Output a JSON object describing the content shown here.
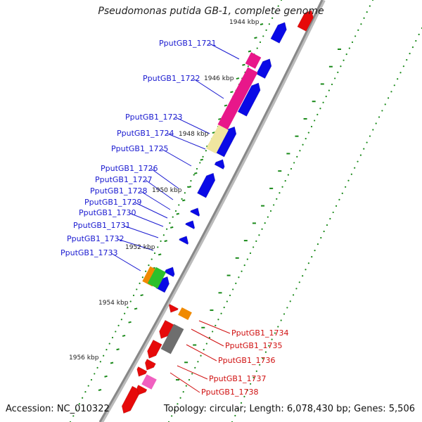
{
  "title": "Pseudomonas putida GB-1, complete genome",
  "footer": {
    "accession": "Accession: NC_010322",
    "topology": "Topology: circular; Length: 6,078,430 bp; Genes: 5,506"
  },
  "kbp_marks": [
    "1944 kbp",
    "1946 kbp",
    "1948 kbp",
    "1950 kbp",
    "1952 kbp",
    "1954 kbp",
    "1956 kbp"
  ],
  "genes_forward": [
    {
      "label": "PputGB1_1721"
    },
    {
      "label": "PputGB1_1722"
    },
    {
      "label": "PputGB1_1723"
    },
    {
      "label": "PputGB1_1724"
    },
    {
      "label": "PputGB1_1725"
    },
    {
      "label": "PputGB1_1726"
    },
    {
      "label": "PputGB1_1727"
    },
    {
      "label": "PputGB1_1728"
    },
    {
      "label": "PputGB1_1729"
    },
    {
      "label": "PputGB1_1730"
    },
    {
      "label": "PputGB1_1731"
    },
    {
      "label": "PputGB1_1732"
    },
    {
      "label": "PputGB1_1733"
    }
  ],
  "genes_reverse": [
    {
      "label": "PputGB1_1734"
    },
    {
      "label": "PputGB1_1735"
    },
    {
      "label": "PputGB1_1736"
    },
    {
      "label": "PputGB1_1737"
    },
    {
      "label": "PputGB1_1738"
    }
  ],
  "colors": {
    "forward_strand": "#0a0ae6",
    "reverse_strand": "#e60a0a",
    "magenta": "#e8178a",
    "pale_yellow": "#f0e6a0",
    "orange": "#f08a00",
    "green": "#2cc02c",
    "gray": "#6e6e6e",
    "pink": "#f060c0",
    "backbone": "#888888",
    "tick": "#1a8a1a",
    "label_forward": "#1a1ad0",
    "label_reverse": "#d01010"
  }
}
